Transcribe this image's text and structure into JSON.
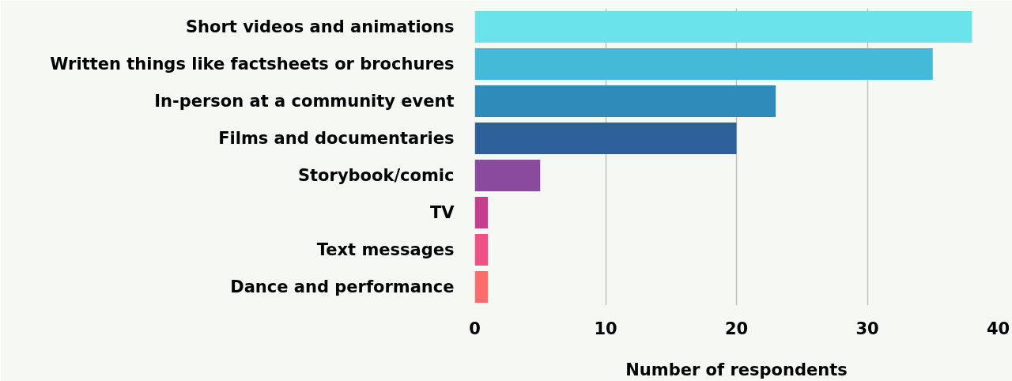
{
  "chart_data": {
    "type": "bar",
    "orientation": "horizontal",
    "xlabel": "Number of respondents",
    "categories": [
      "Short videos and animations",
      "Written things like factsheets or brochures",
      "In-person at a community event",
      "Films and documentaries",
      "Storybook/comic",
      "TV",
      "Text messages",
      "Dance and performance"
    ],
    "values": [
      38,
      35,
      23,
      20,
      5,
      1,
      1,
      1
    ],
    "colors": [
      "#6ae4ea",
      "#45b9d8",
      "#2e8bba",
      "#2d5f98",
      "#8a4a9e",
      "#c43e8e",
      "#ef5086",
      "#ff6b6b"
    ],
    "xlim": [
      0,
      40
    ],
    "xticks": [
      0,
      10,
      20,
      30,
      40
    ],
    "grid": "x"
  }
}
